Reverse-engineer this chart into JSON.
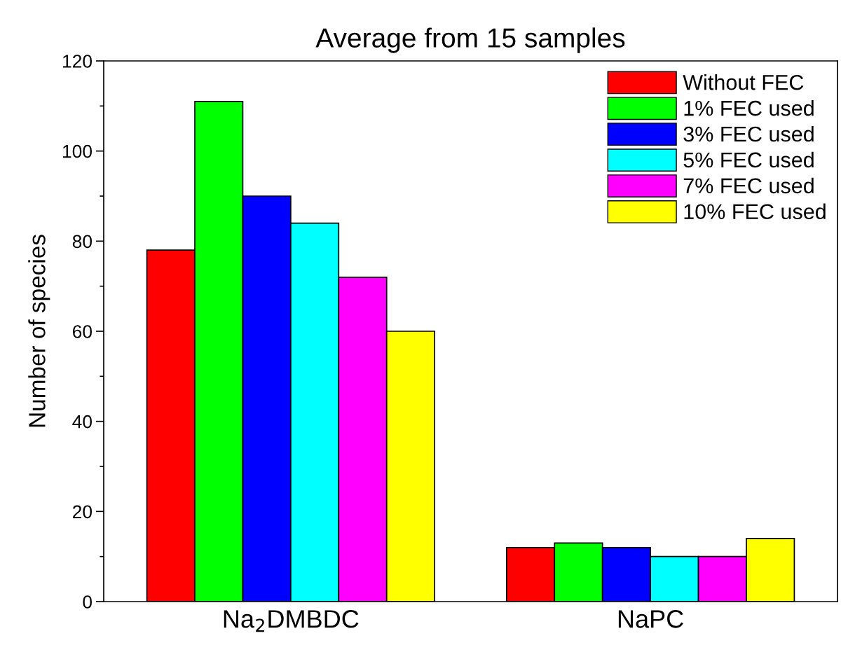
{
  "chart_data": {
    "type": "bar",
    "title": "Average from 15 samples",
    "ylabel": "Number of species",
    "categories": [
      "Na$_{2}$DMBDC",
      "NaPC"
    ],
    "series": [
      {
        "name": "Without FEC",
        "color": "#ff0000",
        "values": [
          78,
          12
        ]
      },
      {
        "name": "1% FEC used",
        "color": "#00ff00",
        "values": [
          111,
          13
        ]
      },
      {
        "name": "3% FEC used",
        "color": "#0000ff",
        "values": [
          90,
          12
        ]
      },
      {
        "name": "5% FEC used",
        "color": "#00ffff",
        "values": [
          84,
          10
        ]
      },
      {
        "name": "7% FEC used",
        "color": "#ff00ff",
        "values": [
          72,
          10
        ]
      },
      {
        "name": "10% FEC used",
        "color": "#ffff00",
        "values": [
          60,
          14
        ]
      }
    ],
    "ylim": [
      0,
      120
    ],
    "yticks": [
      0,
      20,
      40,
      60,
      80,
      100,
      120
    ],
    "grid": false,
    "legend": "top right"
  }
}
